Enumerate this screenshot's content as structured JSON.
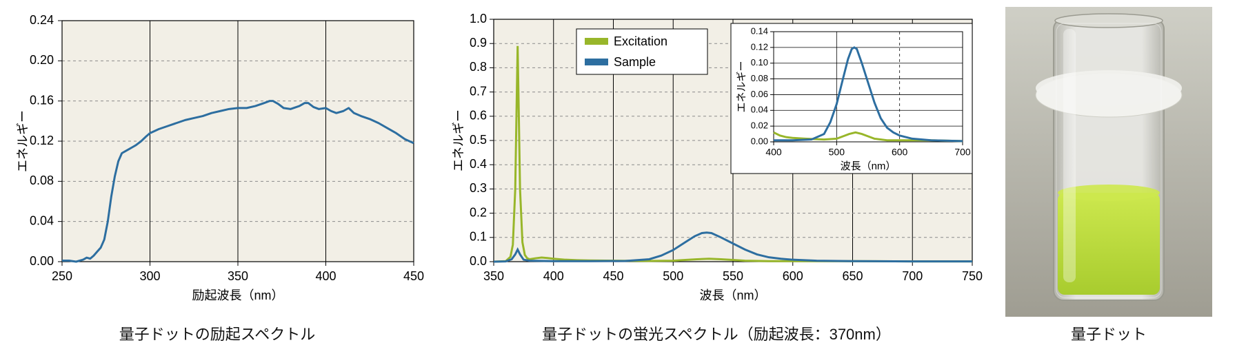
{
  "layout": {
    "panel_bg": "#f2efe6",
    "axis_color": "#000000",
    "grid_color": "#8a8a8a",
    "grid_dash": "4,4",
    "line_color": "#2d6ea0",
    "series_excitation_color": "#98b62a",
    "series_sample_color": "#2d6ea0",
    "label_color": "#000000",
    "label_fontsize": 18,
    "tick_fontsize": 18,
    "caption_fontsize": 22
  },
  "chart1": {
    "type": "line",
    "caption": "量子ドットの励起スペクトル",
    "ylabel": "エネルギー",
    "xlabel": "励起波長（nm）",
    "xlim": [
      250,
      450
    ],
    "ylim": [
      0.0,
      0.24
    ],
    "xticks": [
      250,
      300,
      350,
      400,
      450
    ],
    "yticks": [
      0.0,
      0.04,
      0.08,
      0.12,
      0.16,
      0.2,
      0.24
    ],
    "xgrid": [
      300,
      350,
      400
    ],
    "ygrid": [
      0.04,
      0.08,
      0.12,
      0.16,
      0.2
    ],
    "line_width": 3,
    "data": [
      [
        250,
        0.001
      ],
      [
        254,
        0.001
      ],
      [
        258,
        0.0
      ],
      [
        262,
        0.002
      ],
      [
        264,
        0.004
      ],
      [
        266,
        0.003
      ],
      [
        268,
        0.006
      ],
      [
        270,
        0.01
      ],
      [
        272,
        0.014
      ],
      [
        274,
        0.022
      ],
      [
        276,
        0.04
      ],
      [
        278,
        0.065
      ],
      [
        280,
        0.085
      ],
      [
        282,
        0.1
      ],
      [
        284,
        0.108
      ],
      [
        286,
        0.11
      ],
      [
        288,
        0.112
      ],
      [
        290,
        0.114
      ],
      [
        292,
        0.116
      ],
      [
        295,
        0.12
      ],
      [
        298,
        0.125
      ],
      [
        300,
        0.128
      ],
      [
        305,
        0.132
      ],
      [
        310,
        0.135
      ],
      [
        315,
        0.138
      ],
      [
        320,
        0.141
      ],
      [
        325,
        0.143
      ],
      [
        330,
        0.145
      ],
      [
        335,
        0.148
      ],
      [
        340,
        0.15
      ],
      [
        345,
        0.152
      ],
      [
        350,
        0.153
      ],
      [
        355,
        0.153
      ],
      [
        360,
        0.155
      ],
      [
        365,
        0.158
      ],
      [
        368,
        0.16
      ],
      [
        370,
        0.16
      ],
      [
        373,
        0.157
      ],
      [
        376,
        0.153
      ],
      [
        380,
        0.152
      ],
      [
        385,
        0.155
      ],
      [
        388,
        0.158
      ],
      [
        390,
        0.158
      ],
      [
        393,
        0.154
      ],
      [
        396,
        0.152
      ],
      [
        400,
        0.153
      ],
      [
        403,
        0.15
      ],
      [
        406,
        0.148
      ],
      [
        410,
        0.15
      ],
      [
        413,
        0.153
      ],
      [
        416,
        0.148
      ],
      [
        420,
        0.145
      ],
      [
        425,
        0.142
      ],
      [
        430,
        0.138
      ],
      [
        435,
        0.133
      ],
      [
        440,
        0.128
      ],
      [
        445,
        0.122
      ],
      [
        450,
        0.118
      ]
    ]
  },
  "chart2": {
    "type": "line",
    "caption": "量子ドットの蛍光スペクトル（励起波長：370nm）",
    "ylabel": "エネルギー",
    "xlabel": "波長（nm）",
    "xlim": [
      350,
      750
    ],
    "ylim": [
      0.0,
      1.0
    ],
    "xticks": [
      350,
      400,
      450,
      500,
      550,
      600,
      650,
      700,
      750
    ],
    "yticks": [
      0.0,
      0.1,
      0.2,
      0.3,
      0.4,
      0.5,
      0.6,
      0.7,
      0.8,
      0.9,
      1.0
    ],
    "xgrid": [
      400,
      450,
      500,
      550,
      600,
      650,
      700
    ],
    "ygrid": [
      0.1,
      0.2,
      0.3,
      0.4,
      0.5,
      0.6,
      0.7,
      0.8,
      0.9
    ],
    "legend": {
      "items": [
        {
          "label": "Excitation",
          "color": "#98b62a"
        },
        {
          "label": "Sample",
          "color": "#2d6ea0"
        }
      ]
    },
    "line_width": 3,
    "series": {
      "excitation": [
        [
          350,
          0.0
        ],
        [
          360,
          0.002
        ],
        [
          364,
          0.02
        ],
        [
          366,
          0.07
        ],
        [
          368,
          0.3
        ],
        [
          369,
          0.6
        ],
        [
          370,
          0.89
        ],
        [
          371,
          0.6
        ],
        [
          372,
          0.3
        ],
        [
          374,
          0.08
        ],
        [
          376,
          0.028
        ],
        [
          378,
          0.014
        ],
        [
          380,
          0.01
        ],
        [
          385,
          0.014
        ],
        [
          390,
          0.017
        ],
        [
          395,
          0.015
        ],
        [
          400,
          0.012
        ],
        [
          410,
          0.008
        ],
        [
          420,
          0.006
        ],
        [
          430,
          0.005
        ],
        [
          450,
          0.004
        ],
        [
          480,
          0.003
        ],
        [
          500,
          0.004
        ],
        [
          510,
          0.007
        ],
        [
          520,
          0.01
        ],
        [
          530,
          0.012
        ],
        [
          540,
          0.01
        ],
        [
          550,
          0.007
        ],
        [
          560,
          0.004
        ],
        [
          580,
          0.002
        ],
        [
          600,
          0.002
        ],
        [
          650,
          0.002
        ],
        [
          700,
          0.001
        ],
        [
          750,
          0.001
        ]
      ],
      "sample": [
        [
          350,
          0.0
        ],
        [
          360,
          0.001
        ],
        [
          365,
          0.01
        ],
        [
          368,
          0.03
        ],
        [
          370,
          0.05
        ],
        [
          372,
          0.03
        ],
        [
          375,
          0.008
        ],
        [
          380,
          0.004
        ],
        [
          400,
          0.002
        ],
        [
          430,
          0.002
        ],
        [
          460,
          0.003
        ],
        [
          480,
          0.01
        ],
        [
          490,
          0.025
        ],
        [
          500,
          0.048
        ],
        [
          510,
          0.08
        ],
        [
          518,
          0.105
        ],
        [
          524,
          0.118
        ],
        [
          528,
          0.12
        ],
        [
          532,
          0.118
        ],
        [
          540,
          0.1
        ],
        [
          550,
          0.075
        ],
        [
          560,
          0.05
        ],
        [
          570,
          0.03
        ],
        [
          580,
          0.018
        ],
        [
          590,
          0.012
        ],
        [
          600,
          0.008
        ],
        [
          620,
          0.004
        ],
        [
          650,
          0.002
        ],
        [
          700,
          0.001
        ],
        [
          750,
          0.001
        ]
      ]
    },
    "inset": {
      "ylabel": "エネルギー",
      "xlabel": "波長（nm）",
      "xlim": [
        400,
        700
      ],
      "ylim": [
        0.0,
        0.14
      ],
      "xticks": [
        400,
        500,
        600,
        700
      ],
      "yticks": [
        0.0,
        0.02,
        0.04,
        0.06,
        0.08,
        0.1,
        0.12,
        0.14
      ],
      "xgrid_dashed": [
        600
      ],
      "line_width": 3
    }
  },
  "photo": {
    "caption": "量子ドット",
    "bg_top": "#cfcfc6",
    "bg_bottom": "#9f9d92",
    "vial_glass": "#e8e8e4",
    "vial_glass_edge": "#b5b5ad",
    "stopper": "#f2f2ee",
    "liquid_top": "#cde84e",
    "liquid_bottom": "#a8cc2e"
  }
}
